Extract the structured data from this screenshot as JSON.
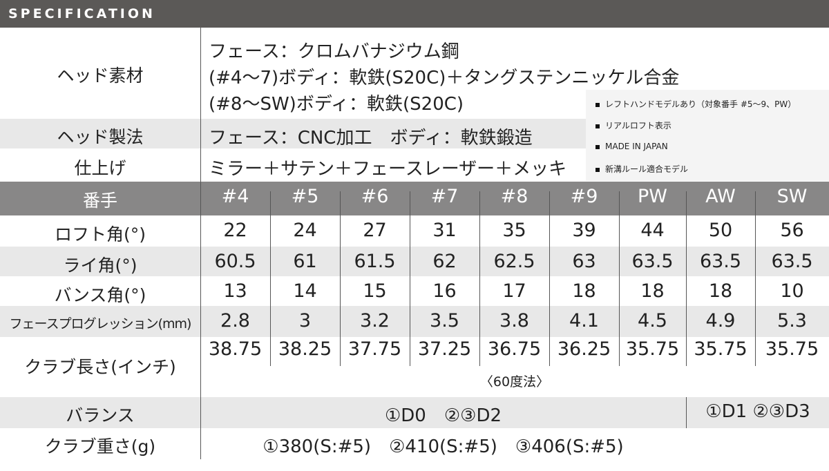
{
  "title": "SPECIFICATION",
  "head_material": {
    "label": "ヘッド素材",
    "lines": [
      "フェース：クロムバナジウム鋼",
      "(#4～7)ボディ：軟鉄(S20C)＋タングステンニッケル合金",
      "(#8～SW)ボディ：軟鉄(S20C)"
    ]
  },
  "head_method": {
    "label": "ヘッド製法",
    "value": "フェース：CNC加工　ボディ：軟鉄鍛造"
  },
  "finish": {
    "label": "仕上げ",
    "value": "ミラー＋サテン＋フェースレーザー＋メッキ"
  },
  "notes": [
    "レフトハンドモデルあり（対象番手 #5～9、PW）",
    "リアルロフト表示",
    "MADE IN JAPAN",
    "新溝ルール適合モデル"
  ],
  "table": {
    "header_label": "番手",
    "clubs": [
      "#4",
      "#5",
      "#6",
      "#7",
      "#8",
      "#9",
      "PW",
      "AW",
      "SW"
    ],
    "rows": [
      {
        "label": "ロフト角(°)",
        "values": [
          "22",
          "24",
          "27",
          "31",
          "35",
          "39",
          "44",
          "50",
          "56"
        ]
      },
      {
        "label": "ライ角(°)",
        "values": [
          "60.5",
          "61",
          "61.5",
          "62",
          "62.5",
          "63",
          "63.5",
          "63.5",
          "63.5"
        ]
      },
      {
        "label": "バンス角(°)",
        "values": [
          "13",
          "14",
          "15",
          "16",
          "17",
          "18",
          "18",
          "18",
          "10"
        ]
      },
      {
        "label": "フェースプログレッション(mm)",
        "values": [
          "2.8",
          "3",
          "3.2",
          "3.5",
          "3.8",
          "4.1",
          "4.5",
          "4.9",
          "5.3"
        ]
      },
      {
        "label": "クラブ長さ(インチ)",
        "values": [
          "38.75",
          "38.25",
          "37.75",
          "37.25",
          "36.75",
          "36.25",
          "35.75",
          "35.75",
          "35.75"
        ]
      }
    ],
    "length_note": "〈60度法〉"
  },
  "balance": {
    "label": "バランス",
    "value_1": "①D0　②③D2",
    "value_2": "①D1 ②③D3"
  },
  "weight": {
    "label": "クラブ重さ(g)",
    "value": "①380(S:#5)　②410(S:#5)　③406(S:#5)"
  }
}
